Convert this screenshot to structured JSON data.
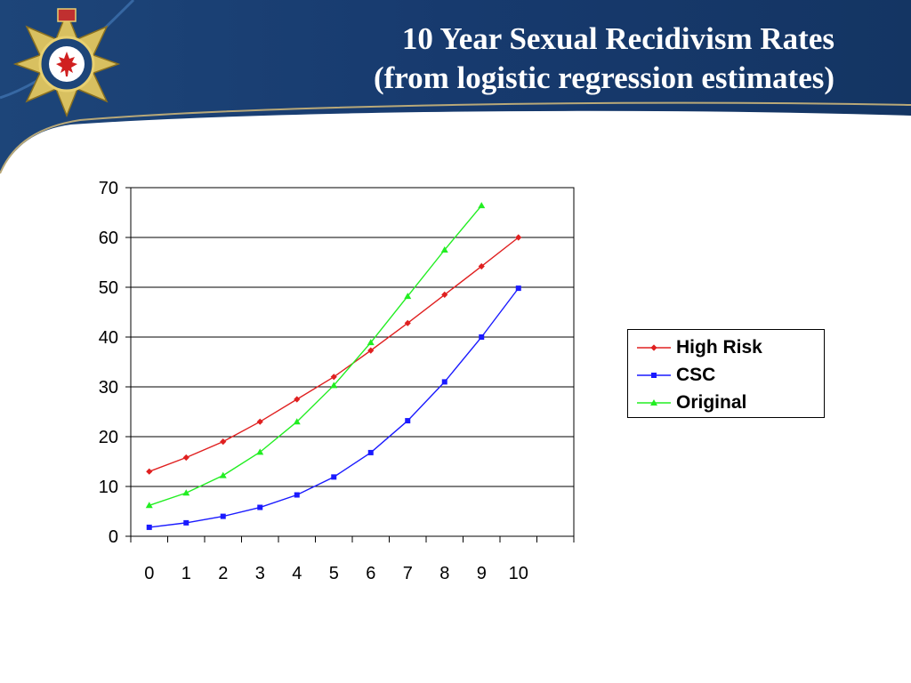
{
  "header": {
    "title_line1": "10 Year Sexual Recidivism Rates",
    "title_line2": "(from logistic regression estimates)",
    "banner_color": "#173a6e",
    "swoosh_color": "#b8a878",
    "logo": "correctional-service-canada-badge"
  },
  "chart_data": {
    "type": "line",
    "x": [
      0,
      1,
      2,
      3,
      4,
      5,
      6,
      7,
      8,
      9,
      10
    ],
    "series": [
      {
        "name": "High Risk",
        "color": "#e02020",
        "marker": "diamond",
        "values": [
          13,
          15.8,
          19,
          23,
          27.5,
          32,
          37.3,
          42.8,
          48.5,
          54.2,
          60
        ]
      },
      {
        "name": "CSC",
        "color": "#1a1aff",
        "marker": "square",
        "values": [
          1.8,
          2.7,
          4,
          5.8,
          8.3,
          11.9,
          16.8,
          23.2,
          31,
          40,
          49.8
        ]
      },
      {
        "name": "Original",
        "color": "#22ee22",
        "marker": "triangle",
        "values": [
          6.2,
          8.7,
          12.2,
          16.9,
          23,
          30.3,
          38.9,
          48.2,
          57.5,
          66.4,
          null
        ]
      }
    ],
    "xlabel": "",
    "ylabel": "",
    "ylim": [
      0,
      70
    ],
    "yticks": [
      0,
      10,
      20,
      30,
      40,
      50,
      60,
      70
    ],
    "xticks": [
      "0",
      "1",
      "2",
      "3",
      "4",
      "5",
      "6",
      "7",
      "8",
      "9",
      "10"
    ],
    "grid": true,
    "legend_position": "right"
  }
}
